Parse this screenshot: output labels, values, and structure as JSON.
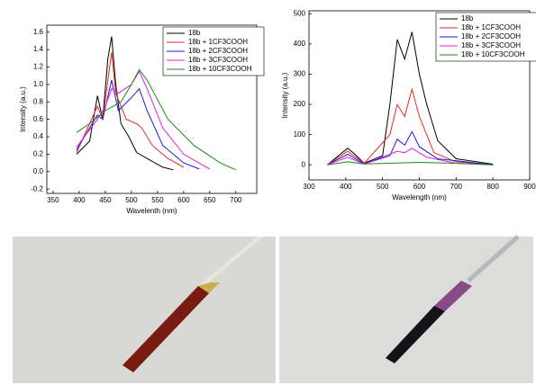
{
  "chart_data": [
    {
      "type": "line",
      "xlabel": "Wavelenth (nm)",
      "ylabel": "Intensity (a.u.)",
      "xlim": [
        338,
        740
      ],
      "ylim": [
        -0.25,
        1.68
      ],
      "xticks": [
        350,
        400,
        450,
        500,
        550,
        600,
        650,
        700
      ],
      "yticks": [
        -0.2,
        {
          "value": 0,
          "label": "0.0"
        },
        0.2,
        0.4,
        0.6,
        0.8,
        {
          "value": 1,
          "label": "1.0"
        },
        1.2,
        1.4,
        1.6
      ],
      "legend": "upper right",
      "series": [
        {
          "name": "18b",
          "color": "#000000",
          "x": [
            395,
            420,
            435,
            445,
            455,
            462,
            470,
            480,
            495,
            510,
            530,
            560,
            580
          ],
          "values": [
            0.2,
            0.35,
            0.87,
            0.6,
            1.3,
            1.55,
            1.0,
            0.55,
            0.4,
            0.22,
            0.15,
            0.05,
            0.02
          ]
        },
        {
          "name": "18b + 1CF3COOH",
          "color": "#e8281e",
          "x": [
            395,
            435,
            445,
            462,
            470,
            490,
            510,
            520,
            540,
            570,
            600
          ],
          "values": [
            0.22,
            0.75,
            0.6,
            1.37,
            0.9,
            0.6,
            0.55,
            0.5,
            0.3,
            0.15,
            0.05
          ]
        },
        {
          "name": "18b + 2CF3COOH",
          "color": "#1a1adc",
          "x": [
            395,
            435,
            445,
            462,
            475,
            500,
            515,
            530,
            560,
            600,
            630
          ],
          "values": [
            0.25,
            0.65,
            0.6,
            1.05,
            0.7,
            0.85,
            0.95,
            0.7,
            0.3,
            0.1,
            0.03
          ]
        },
        {
          "name": "18b + 3CF3COOH",
          "color": "#e020e0",
          "x": [
            395,
            435,
            450,
            462,
            475,
            500,
            515,
            530,
            560,
            600,
            650
          ],
          "values": [
            0.28,
            0.6,
            0.75,
            0.95,
            0.9,
            1.0,
            1.15,
            0.95,
            0.5,
            0.2,
            0.03
          ]
        },
        {
          "name": "18b + 10CF3COOH",
          "color": "#1a8a1a",
          "x": [
            395,
            420,
            450,
            480,
            500,
            515,
            530,
            570,
            620,
            670,
            700
          ],
          "values": [
            0.45,
            0.55,
            0.7,
            0.8,
            1.0,
            1.17,
            1.05,
            0.6,
            0.3,
            0.1,
            0.02
          ]
        }
      ]
    },
    {
      "type": "line",
      "xlabel": "Wavelength (nm)",
      "ylabel": "Intensity (a.u.)",
      "xlim": [
        300,
        900
      ],
      "ylim": [
        -50,
        510
      ],
      "xticks": [
        300,
        400,
        500,
        600,
        700,
        800,
        900
      ],
      "yticks": [
        0,
        100,
        200,
        300,
        400,
        500
      ],
      "legend": "upper right",
      "series": [
        {
          "name": "18b",
          "color": "#000000",
          "x": [
            350,
            390,
            405,
            420,
            450,
            500,
            520,
            540,
            560,
            580,
            600,
            620,
            650,
            700,
            800
          ],
          "values": [
            0,
            40,
            55,
            40,
            5,
            30,
            200,
            415,
            350,
            440,
            300,
            200,
            80,
            20,
            2
          ]
        },
        {
          "name": "18b + 1CF3COOH",
          "color": "#e8281e",
          "x": [
            350,
            405,
            450,
            520,
            540,
            560,
            580,
            600,
            640,
            700,
            800
          ],
          "values": [
            0,
            45,
            5,
            100,
            200,
            160,
            250,
            160,
            40,
            10,
            0
          ]
        },
        {
          "name": "18b + 2CF3COOH",
          "color": "#1a1adc",
          "x": [
            350,
            405,
            450,
            520,
            540,
            560,
            580,
            600,
            650,
            800
          ],
          "values": [
            0,
            35,
            3,
            30,
            85,
            65,
            110,
            60,
            20,
            0
          ]
        },
        {
          "name": "18b + 3CF3COOH",
          "color": "#e020e0",
          "x": [
            350,
            405,
            450,
            540,
            560,
            580,
            620,
            700,
            800
          ],
          "values": [
            0,
            25,
            2,
            45,
            40,
            55,
            25,
            5,
            0
          ]
        },
        {
          "name": "18b + 10CF3COOH",
          "color": "#1a8a1a",
          "x": [
            350,
            405,
            450,
            600,
            700,
            800
          ],
          "values": [
            0,
            10,
            3,
            8,
            5,
            0
          ]
        }
      ]
    }
  ]
}
